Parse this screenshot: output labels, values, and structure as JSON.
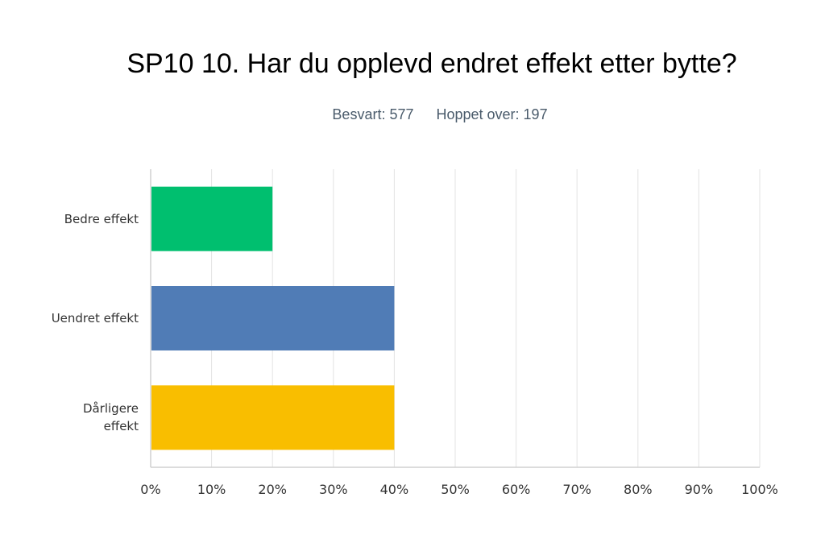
{
  "title": "SP10 10. Har du opplevd endret effekt etter bytte?",
  "stats": {
    "answered_label": "Besvart: 577",
    "skipped_label": "Hoppet over: 197"
  },
  "chart_data": {
    "type": "bar",
    "orientation": "horizontal",
    "categories": [
      "Bedre effekt",
      "Uendret effekt",
      "Dårligere effekt"
    ],
    "category_lines": [
      [
        "Bedre effekt"
      ],
      [
        "Uendret effekt"
      ],
      [
        "Dårligere",
        "effekt"
      ]
    ],
    "values": [
      20,
      40,
      40
    ],
    "colors": [
      "#00bf6f",
      "#507cb6",
      "#f9be00"
    ],
    "xlim": [
      0,
      100
    ],
    "xticks": [
      "0%",
      "10%",
      "20%",
      "30%",
      "40%",
      "50%",
      "60%",
      "70%",
      "80%",
      "90%",
      "100%"
    ],
    "grid": true
  }
}
